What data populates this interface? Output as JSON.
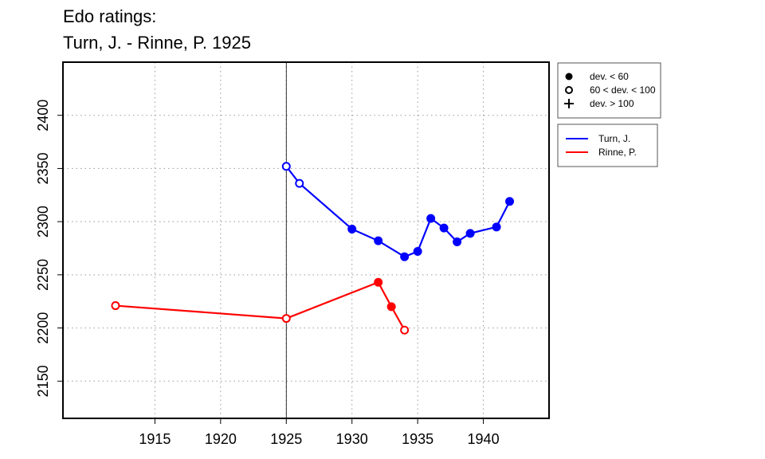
{
  "chart_data": {
    "type": "line",
    "title": "Edo ratings:",
    "subtitle": "Turn, J. - Rinne, P. 1925",
    "xlabel": "",
    "ylabel": "",
    "xlim": [
      1908,
      1945
    ],
    "ylim": [
      2115,
      2450
    ],
    "x_ticks": [
      1915,
      1920,
      1925,
      1930,
      1935,
      1940
    ],
    "y_ticks": [
      2150,
      2200,
      2250,
      2300,
      2350,
      2400
    ],
    "grid": true,
    "reference_line_x": 1925,
    "legend_position": "outside-right",
    "marker_legend": [
      {
        "symbol": "filled-circle",
        "label": "dev. < 60"
      },
      {
        "symbol": "open-circle",
        "label": "60 < dev. < 100"
      },
      {
        "symbol": "plus",
        "label": "dev. > 100"
      }
    ],
    "series": [
      {
        "name": "Turn, J.",
        "color": "#0000ff",
        "points": [
          {
            "x": 1925,
            "y": 2352,
            "marker": "open-circle"
          },
          {
            "x": 1926,
            "y": 2336,
            "marker": "open-circle"
          },
          {
            "x": 1930,
            "y": 2293,
            "marker": "filled-circle"
          },
          {
            "x": 1932,
            "y": 2282,
            "marker": "filled-circle"
          },
          {
            "x": 1934,
            "y": 2267,
            "marker": "filled-circle"
          },
          {
            "x": 1935,
            "y": 2272,
            "marker": "filled-circle"
          },
          {
            "x": 1936,
            "y": 2303,
            "marker": "filled-circle"
          },
          {
            "x": 1937,
            "y": 2294,
            "marker": "filled-circle"
          },
          {
            "x": 1938,
            "y": 2281,
            "marker": "filled-circle"
          },
          {
            "x": 1939,
            "y": 2289,
            "marker": "filled-circle"
          },
          {
            "x": 1941,
            "y": 2295,
            "marker": "filled-circle"
          },
          {
            "x": 1942,
            "y": 2319,
            "marker": "filled-circle"
          }
        ]
      },
      {
        "name": "Rinne, P.",
        "color": "#ff0000",
        "points": [
          {
            "x": 1912,
            "y": 2221,
            "marker": "open-circle"
          },
          {
            "x": 1925,
            "y": 2209,
            "marker": "open-circle"
          },
          {
            "x": 1932,
            "y": 2243,
            "marker": "filled-circle"
          },
          {
            "x": 1933,
            "y": 2220,
            "marker": "filled-circle"
          },
          {
            "x": 1934,
            "y": 2198,
            "marker": "open-circle"
          }
        ]
      }
    ]
  }
}
